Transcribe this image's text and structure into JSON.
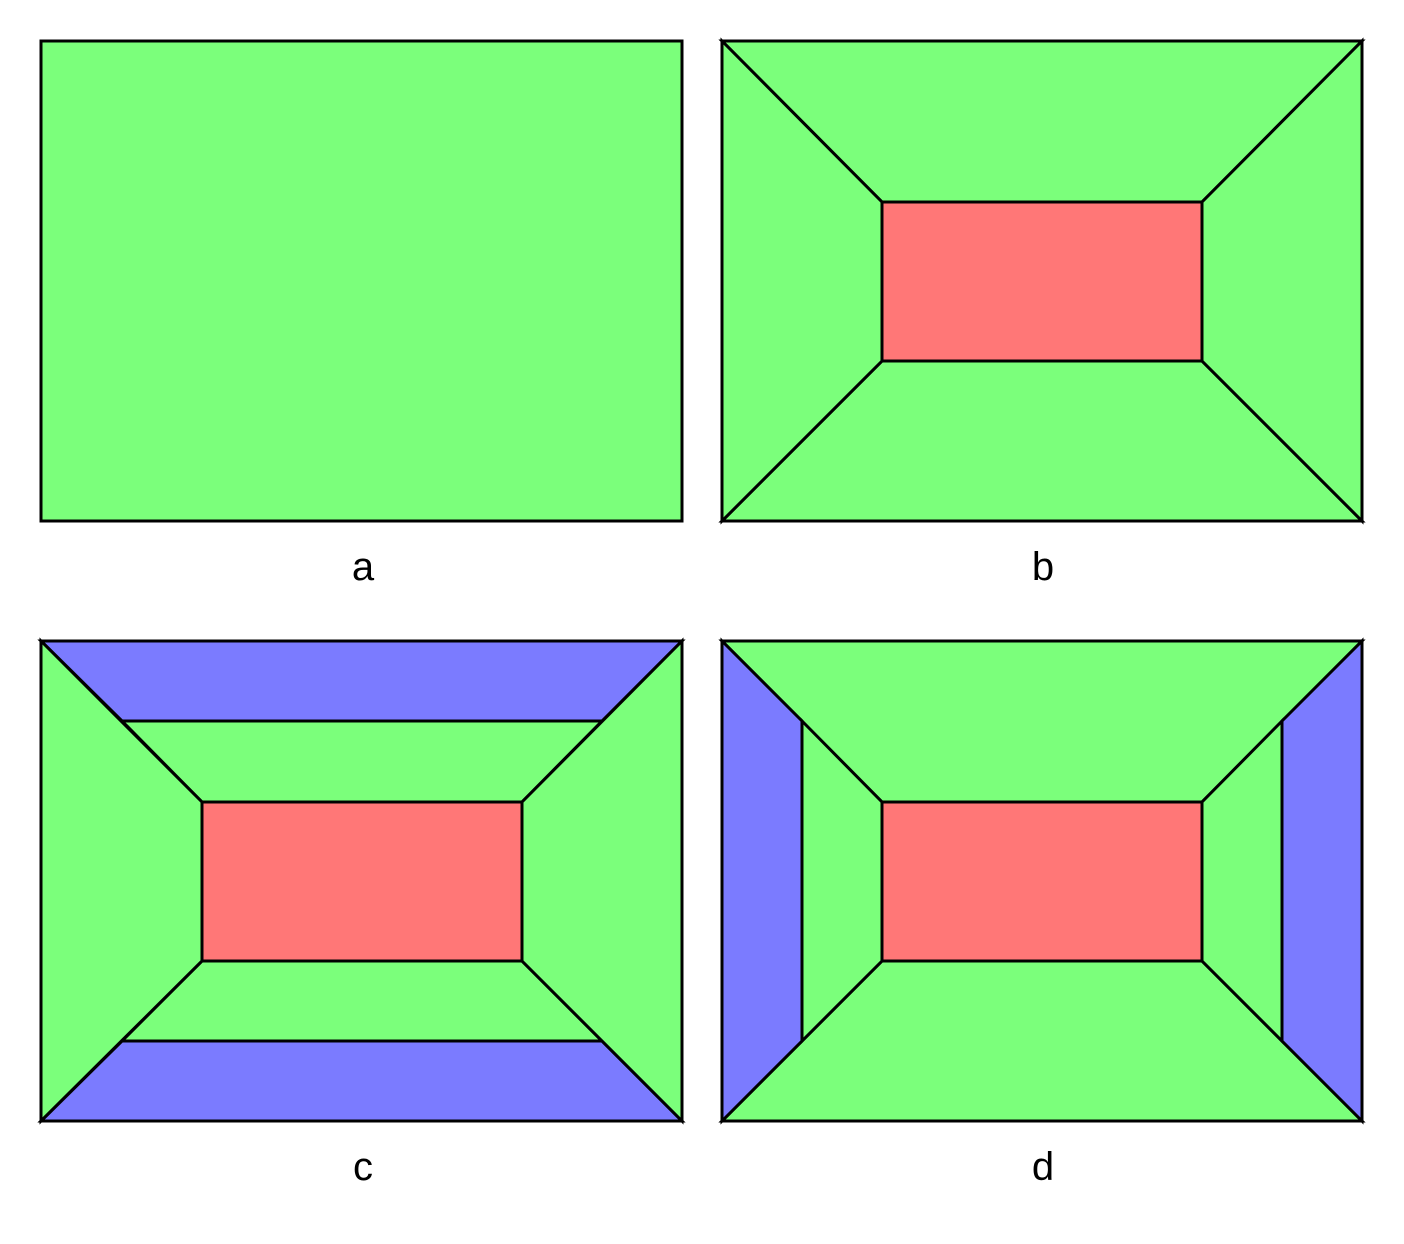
{
  "colors": {
    "green": "#7bff7b",
    "red": "#ff7777",
    "blue": "#7b7bff",
    "outline": "#000000",
    "background": "#ffffff"
  },
  "panels": [
    {
      "id": "a",
      "label": "a",
      "regions": [
        {
          "name": "full-rectangle",
          "color": "green"
        }
      ]
    },
    {
      "id": "b",
      "label": "b",
      "regions": [
        {
          "name": "top-trapezoid",
          "color": "green"
        },
        {
          "name": "bottom-trapezoid",
          "color": "green"
        },
        {
          "name": "left-trapezoid",
          "color": "green"
        },
        {
          "name": "right-trapezoid",
          "color": "green"
        },
        {
          "name": "center-rectangle",
          "color": "red"
        }
      ]
    },
    {
      "id": "c",
      "label": "c",
      "regions": [
        {
          "name": "top-outer-band",
          "color": "blue"
        },
        {
          "name": "top-inner-band",
          "color": "green"
        },
        {
          "name": "bottom-inner-band",
          "color": "green"
        },
        {
          "name": "bottom-outer-band",
          "color": "blue"
        },
        {
          "name": "left-trapezoid",
          "color": "green"
        },
        {
          "name": "right-trapezoid",
          "color": "green"
        },
        {
          "name": "center-rectangle",
          "color": "red"
        }
      ]
    },
    {
      "id": "d",
      "label": "d",
      "regions": [
        {
          "name": "top-trapezoid",
          "color": "green"
        },
        {
          "name": "bottom-trapezoid",
          "color": "green"
        },
        {
          "name": "left-outer-band",
          "color": "blue"
        },
        {
          "name": "left-inner-band",
          "color": "green"
        },
        {
          "name": "right-inner-band",
          "color": "green"
        },
        {
          "name": "right-outer-band",
          "color": "blue"
        },
        {
          "name": "center-rectangle",
          "color": "red"
        }
      ]
    }
  ]
}
